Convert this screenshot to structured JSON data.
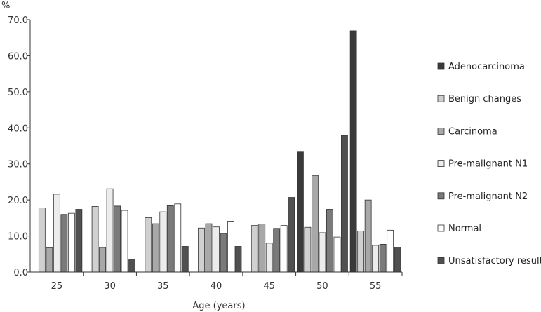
{
  "chart_data": {
    "type": "bar",
    "title": "",
    "xlabel": "Age (years)",
    "ylabel": "%",
    "ylim": [
      0,
      70
    ],
    "yticks": [
      "0.0",
      "10.0",
      "20.0",
      "30.0",
      "40.0",
      "50.0",
      "60.0",
      "70.0"
    ],
    "categories": [
      "25",
      "30",
      "35",
      "40",
      "45",
      "50",
      "55"
    ],
    "grid": false,
    "legend_position": "right",
    "series": [
      {
        "name": "Adenocarcinoma",
        "color": "#3a3a3a",
        "values": [
          0,
          0,
          0,
          0,
          0,
          33.3,
          66.9
        ]
      },
      {
        "name": "Benign changes",
        "color": "#d0d0d0",
        "values": [
          17.8,
          18.2,
          15.1,
          12.2,
          12.9,
          12.4,
          11.4
        ]
      },
      {
        "name": "Carcinoma",
        "color": "#a8a8a8",
        "values": [
          6.7,
          6.8,
          13.4,
          13.4,
          13.3,
          26.8,
          20.0
        ]
      },
      {
        "name": "Pre-malignant N1",
        "color": "#ececec",
        "values": [
          21.6,
          23.1,
          16.7,
          12.5,
          8.0,
          10.9,
          7.4
        ]
      },
      {
        "name": "Pre-malignant N2",
        "color": "#7a7a7a",
        "values": [
          16.0,
          18.3,
          18.4,
          10.7,
          12.1,
          17.4,
          7.7
        ]
      },
      {
        "name": "Normal",
        "color": "#ffffff",
        "values": [
          16.3,
          17.1,
          18.9,
          14.1,
          12.9,
          9.7,
          11.6
        ]
      },
      {
        "name": "Unsatisfactory result",
        "color": "#505050",
        "values": [
          17.4,
          3.4,
          7.1,
          7.1,
          20.7,
          37.9,
          6.9
        ]
      }
    ]
  }
}
